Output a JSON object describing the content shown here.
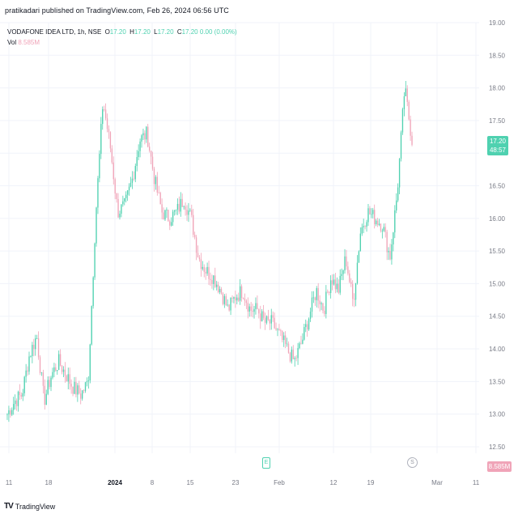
{
  "header": {
    "publish_line": "pratikadari published on TradingView.com, Feb 26, 2024 06:56 UTC"
  },
  "legend": {
    "symbol": "VODAFONE IDEA LTD, 1h, NSE",
    "o_label": "O",
    "o_value": "17.20",
    "h_label": "H",
    "h_value": "17.20",
    "l_label": "L",
    "l_value": "17.20",
    "c_label": "C",
    "c_value": "17.20",
    "change": "0.00 (0.00%)",
    "vol_label": "Vol",
    "vol_value": "8.585M"
  },
  "price_badge": {
    "price": "17.20",
    "countdown": "48:57"
  },
  "volume_badge": "8.585M",
  "event_icon_glyph": "E",
  "split_icon_glyph": "S",
  "logo": {
    "mark": "TV",
    "text": "TradingView"
  },
  "colors": {
    "up": "#4fd1b0",
    "down": "#f0a4b8",
    "grid": "#f0f3fa",
    "axis_text": "#787b86"
  },
  "chart_data": {
    "type": "candlestick",
    "title": "VODAFONE IDEA LTD, 1h, NSE",
    "ylim": [
      12.4,
      19.0
    ],
    "y_ticks": [
      "19.00",
      "18.50",
      "18.00",
      "17.50",
      "17.00",
      "16.50",
      "16.00",
      "15.50",
      "15.00",
      "14.50",
      "14.00",
      "13.50",
      "13.00",
      "12.50"
    ],
    "x_ticks": [
      {
        "label": "11",
        "bold": false
      },
      {
        "label": "18",
        "bold": false
      },
      {
        "label": "2024",
        "bold": true
      },
      {
        "label": "8",
        "bold": false
      },
      {
        "label": "15",
        "bold": false
      },
      {
        "label": "23",
        "bold": false
      },
      {
        "label": "Feb",
        "bold": false
      },
      {
        "label": "12",
        "bold": false
      },
      {
        "label": "19",
        "bold": false
      },
      {
        "label": "Mar",
        "bold": false
      },
      {
        "label": "11",
        "bold": false
      }
    ],
    "approx_close_path": [
      [
        "Dec 11",
        13.0
      ],
      [
        "Dec 12",
        13.2
      ],
      [
        "Dec 13",
        13.3
      ],
      [
        "Dec 14",
        13.9
      ],
      [
        "Dec 15",
        14.2
      ],
      [
        "Dec 18",
        13.2
      ],
      [
        "Dec 19",
        13.6
      ],
      [
        "Dec 20",
        13.8
      ],
      [
        "Dec 21",
        13.6
      ],
      [
        "Dec 22",
        13.4
      ],
      [
        "Dec 26",
        13.3
      ],
      [
        "Dec 27",
        13.5
      ],
      [
        "Dec 28",
        16.0
      ],
      [
        "Dec 29",
        17.8
      ],
      [
        "Jan 1",
        17.1
      ],
      [
        "Jan 2",
        16.1
      ],
      [
        "Jan 3",
        16.2
      ],
      [
        "Jan 4",
        16.6
      ],
      [
        "Jan 5",
        17.2
      ],
      [
        "Jan 8",
        17.3
      ],
      [
        "Jan 9",
        16.6
      ],
      [
        "Jan 10",
        16.1
      ],
      [
        "Jan 11",
        16.0
      ],
      [
        "Jan 12",
        16.1
      ],
      [
        "Jan 15",
        16.3
      ],
      [
        "Jan 16",
        16.0
      ],
      [
        "Jan 17",
        15.4
      ],
      [
        "Jan 18",
        15.2
      ],
      [
        "Jan 19",
        15.1
      ],
      [
        "Jan 22",
        14.9
      ],
      [
        "Jan 23",
        14.6
      ],
      [
        "Jan 24",
        14.8
      ],
      [
        "Jan 25",
        14.9
      ],
      [
        "Jan 29",
        14.6
      ],
      [
        "Jan 30",
        14.6
      ],
      [
        "Jan 31",
        14.4
      ],
      [
        "Feb 1",
        14.4
      ],
      [
        "Feb 2",
        14.2
      ],
      [
        "Feb 5",
        14.0
      ],
      [
        "Feb 6",
        13.8
      ],
      [
        "Feb 7",
        14.1
      ],
      [
        "Feb 8",
        14.5
      ],
      [
        "Feb 9",
        14.9
      ],
      [
        "Feb 12",
        14.6
      ],
      [
        "Feb 13",
        15.1
      ],
      [
        "Feb 14",
        14.9
      ],
      [
        "Feb 15",
        15.4
      ],
      [
        "Feb 16",
        14.7
      ],
      [
        "Feb 19",
        15.8
      ],
      [
        "Feb 20",
        16.1
      ],
      [
        "Feb 21",
        16.0
      ],
      [
        "Feb 22",
        15.9
      ],
      [
        "Feb 23",
        15.4
      ],
      [
        "Feb 24",
        16.4
      ],
      [
        "Feb 25",
        18.0
      ],
      [
        "Feb 26",
        17.2
      ]
    ]
  }
}
